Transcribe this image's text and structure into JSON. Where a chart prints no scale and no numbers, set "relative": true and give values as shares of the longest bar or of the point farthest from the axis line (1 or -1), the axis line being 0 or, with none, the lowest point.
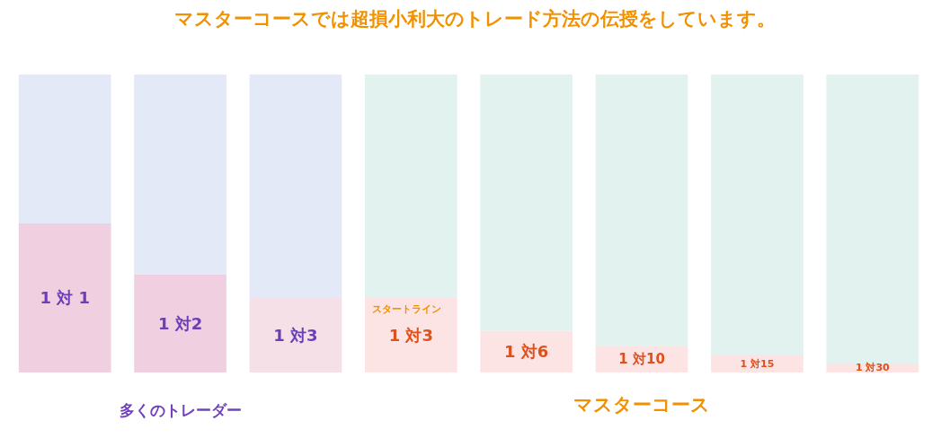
{
  "chart_data": {
    "type": "bar",
    "stacked": true,
    "relative": true,
    "title": "マスターコースでは超損小利大のトレード方法の伝授をしています。",
    "categories": [
      null,
      null,
      null,
      null,
      null,
      null,
      null,
      null
    ],
    "series": [
      {
        "colors": [
          "#f0d0e0",
          "#f0d0e0",
          "#f6e0e8",
          "#fde4e4",
          "#fde4e4",
          "#fde4e4",
          "#fde4e4",
          "#fde4e4"
        ],
        "values": [
          0.5,
          0.33,
          0.25,
          0.25,
          0.14,
          0.09,
          0.06,
          0.03
        ]
      },
      {
        "colors": [
          "#e4e9f8",
          "#e4e9f8",
          "#e4e9f8",
          "#e2f2ef",
          "#e2f2ef",
          "#e2f2ef",
          "#e2f2ef",
          "#e2f2ef"
        ],
        "values": [
          0.5,
          0.67,
          0.75,
          0.75,
          0.86,
          0.91,
          0.94,
          0.97
        ]
      }
    ],
    "annotations": [
      "1 対 1",
      "1 対2",
      "1 対3",
      "1 対3",
      "1 対6",
      "1 対10",
      "1 対15",
      "1 対30",
      "スタートライン",
      "多くのトレーダー",
      "マスターコース"
    ]
  }
}
